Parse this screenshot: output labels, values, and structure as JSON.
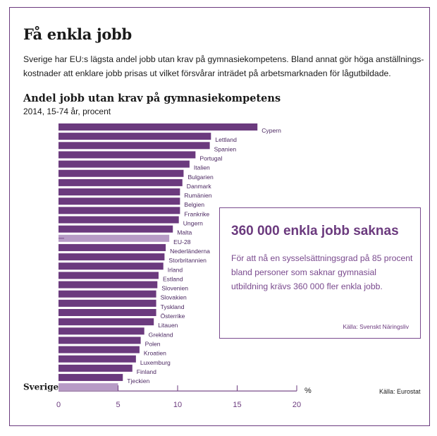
{
  "page": {
    "title": "Få enkla jobb",
    "intro": "Sverige har EU:s lägsta andel jobb utan krav på gymnasiekompetens. Bland annat gör höga anställnings- kostnader att enklare jobb prisas ut vilket försvårar inträdet på arbetsmarknaden för lågutbildade."
  },
  "callout": {
    "title": "360 000 enkla jobb saknas",
    "text": "För att nå en sysselsättningsgrad på 85 procent bland personer som saknar gymnasial utbildning krävs 360 000 fler enkla jobb.",
    "source": "Källa: Svenskt Näringsliv"
  },
  "colors": {
    "bar": "#6b3a7e",
    "highlight": "#b79bc6",
    "axis": "#6b3a7e",
    "frame": "#6b3a7e"
  },
  "chart_data": {
    "type": "bar",
    "orientation": "horizontal",
    "title": "Andel jobb utan krav på gymnasiekompetens",
    "subtitle": "2014, 15-74 år, procent",
    "categories": [
      "Cypern",
      "Lettland",
      "Spanien",
      "Portugal",
      "Italien",
      "Bulgarien",
      "Danmark",
      "Rumänien",
      "Belgien",
      "Frankrike",
      "Ungern",
      "Malta",
      "EU-28",
      "Nederländerna",
      "Storbritannien",
      "Irland",
      "Estland",
      "Slovenien",
      "Slovakien",
      "Tyskland",
      "Österrike",
      "Litauen",
      "Grekland",
      "Polen",
      "Kroatien",
      "Luxemburg",
      "Finland",
      "Tjeckien",
      "Sverige"
    ],
    "values": [
      16.7,
      12.8,
      12.7,
      11.5,
      11.0,
      10.5,
      10.4,
      10.2,
      10.2,
      10.2,
      10.1,
      9.6,
      9.3,
      9.0,
      8.9,
      8.8,
      8.4,
      8.3,
      8.2,
      8.2,
      8.2,
      8.0,
      7.2,
      6.9,
      6.8,
      6.5,
      6.2,
      5.4,
      5.0
    ],
    "highlighted": [
      "EU-28",
      "Sverige"
    ],
    "xlim": [
      0,
      20
    ],
    "xticks": [
      "0",
      "5",
      "10",
      "15",
      "20"
    ],
    "xlabel": "%",
    "source": "Källa: Eurostat"
  }
}
